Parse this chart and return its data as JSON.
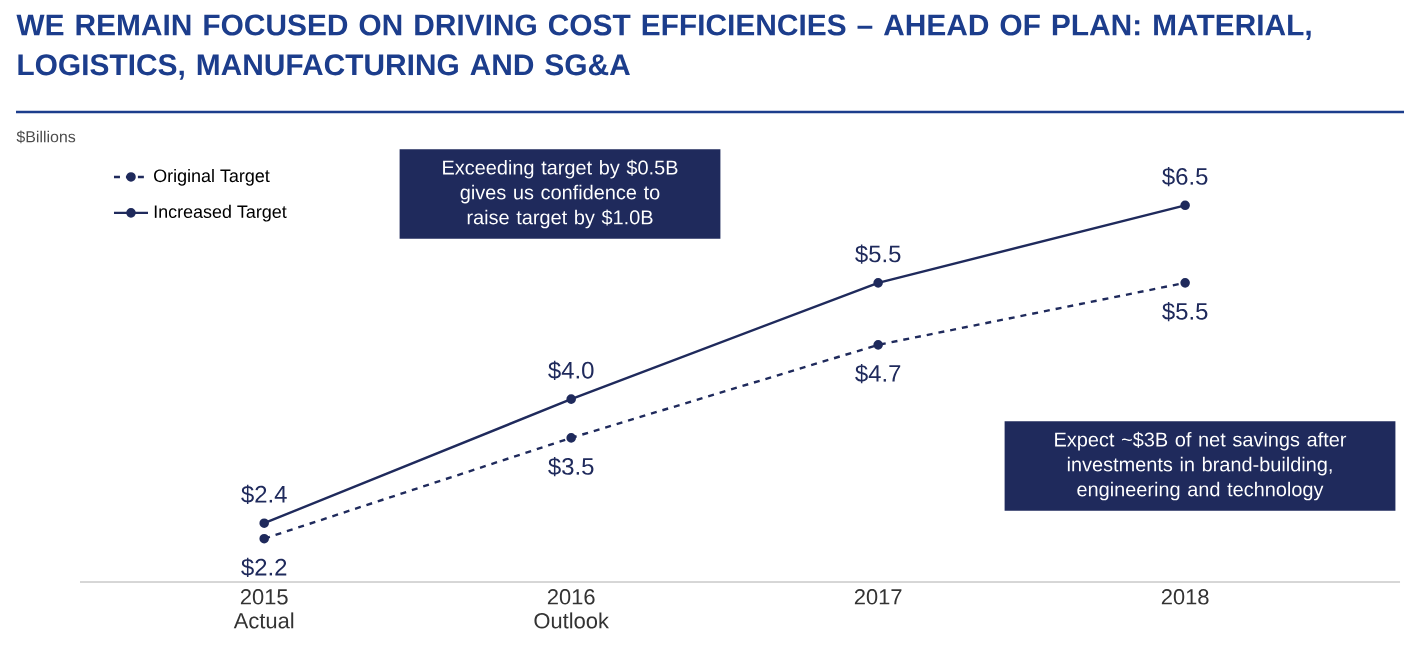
{
  "chart_data": {
    "type": "line",
    "title": "WE REMAIN FOCUSED ON DRIVING COST EFFICIENCIES – AHEAD OF PLAN:  MATERIAL, LOGISTICS, MANUFACTURING AND SG&A",
    "ylabel": "$Billions",
    "categories": [
      "2015 Actual",
      "2016 Outlook",
      "2017",
      "2018"
    ],
    "series": [
      {
        "name": "Original Target",
        "color": "#1f2a5c",
        "line_style": "dashed",
        "values": [
          2.2,
          3.5,
          4.7,
          5.5
        ],
        "value_labels": [
          "$2.2",
          "$3.5",
          "$4.7",
          "$5.5"
        ]
      },
      {
        "name": "Increased Target",
        "color": "#1f2a5c",
        "line_style": "solid",
        "values": [
          2.4,
          4.0,
          5.5,
          6.5
        ],
        "value_labels": [
          "$2.4",
          "$4.0",
          "$5.5",
          "$6.5"
        ]
      }
    ],
    "tick_labels": "x",
    "marker": "circle",
    "legend": "top left",
    "annotations": [
      "Exceeding target by $0.5B gives us confidence to raise target by $1.0B",
      "Expect ~$3B of net savings after investments in brand-building, engineering and technology"
    ]
  }
}
